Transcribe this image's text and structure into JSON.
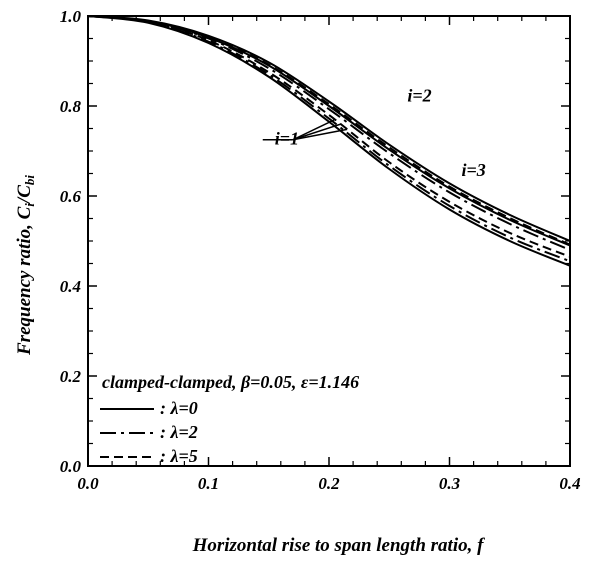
{
  "chart_data": {
    "type": "line",
    "title": "",
    "xlabel": "Horizontal rise to span length ratio, f",
    "ylabel_main": "Frequency ratio, C",
    "ylabel_sub1": "i",
    "ylabel_mid": "/C",
    "ylabel_sub2": "bi",
    "xlim": [
      0.0,
      0.4
    ],
    "ylim": [
      0.0,
      1.0
    ],
    "x_ticks": [
      "0.0",
      "0.1",
      "0.2",
      "0.3",
      "0.4"
    ],
    "y_ticks": [
      "0.0",
      "0.2",
      "0.4",
      "0.6",
      "0.8",
      "1.0"
    ],
    "grid": false,
    "legend_title": "clamped-clamped, β=0.05, ε=1.146",
    "legend_position": "lower-left",
    "legend": [
      {
        "label": ": λ=0",
        "dash": "solid"
      },
      {
        "label": ": λ=2",
        "dash": "dashdot"
      },
      {
        "label": ": λ=5",
        "dash": "dashed"
      }
    ],
    "annotations": [
      {
        "text": "i=1",
        "x": 0.155,
        "y": 0.715
      },
      {
        "text": "i=2",
        "x": 0.265,
        "y": 0.81
      },
      {
        "text": "i=3",
        "x": 0.31,
        "y": 0.645
      }
    ],
    "series": [
      {
        "mode": 1,
        "lambda": 0,
        "dash": "solid",
        "x": [
          0,
          0.05,
          0.1,
          0.15,
          0.2,
          0.25,
          0.3,
          0.35,
          0.4
        ],
        "y": [
          1.0,
          0.985,
          0.94,
          0.865,
          0.765,
          0.66,
          0.57,
          0.5,
          0.445
        ]
      },
      {
        "mode": 1,
        "lambda": 2,
        "dash": "dashdot",
        "x": [
          0,
          0.05,
          0.1,
          0.15,
          0.2,
          0.25,
          0.3,
          0.35,
          0.4
        ],
        "y": [
          1.0,
          0.986,
          0.943,
          0.87,
          0.772,
          0.667,
          0.578,
          0.508,
          0.455
        ]
      },
      {
        "mode": 1,
        "lambda": 5,
        "dash": "dashed",
        "x": [
          0,
          0.05,
          0.1,
          0.15,
          0.2,
          0.25,
          0.3,
          0.35,
          0.4
        ],
        "y": [
          1.0,
          0.987,
          0.946,
          0.875,
          0.78,
          0.675,
          0.587,
          0.518,
          0.465
        ]
      },
      {
        "mode": 2,
        "lambda": 0,
        "dash": "solid",
        "x": [
          0,
          0.05,
          0.1,
          0.15,
          0.2,
          0.25,
          0.3,
          0.35,
          0.4
        ],
        "y": [
          1.0,
          0.989,
          0.952,
          0.89,
          0.8,
          0.703,
          0.617,
          0.547,
          0.49
        ]
      },
      {
        "mode": 2,
        "lambda": 2,
        "dash": "dashdot",
        "x": [
          0,
          0.05,
          0.1,
          0.15,
          0.2,
          0.25,
          0.3,
          0.35,
          0.4
        ],
        "y": [
          1.0,
          0.988,
          0.95,
          0.884,
          0.793,
          0.695,
          0.608,
          0.538,
          0.48
        ]
      },
      {
        "mode": 3,
        "lambda": 0,
        "dash": "solid",
        "x": [
          0,
          0.05,
          0.1,
          0.15,
          0.2,
          0.25,
          0.3,
          0.35,
          0.4
        ],
        "y": [
          1.0,
          0.99,
          0.956,
          0.897,
          0.81,
          0.714,
          0.628,
          0.558,
          0.5
        ]
      },
      {
        "mode": 3,
        "lambda": 5,
        "dash": "dashed",
        "x": [
          0,
          0.05,
          0.1,
          0.15,
          0.2,
          0.25,
          0.3,
          0.35,
          0.4
        ],
        "y": [
          1.0,
          0.989,
          0.953,
          0.892,
          0.804,
          0.708,
          0.621,
          0.551,
          0.492
        ]
      }
    ]
  }
}
